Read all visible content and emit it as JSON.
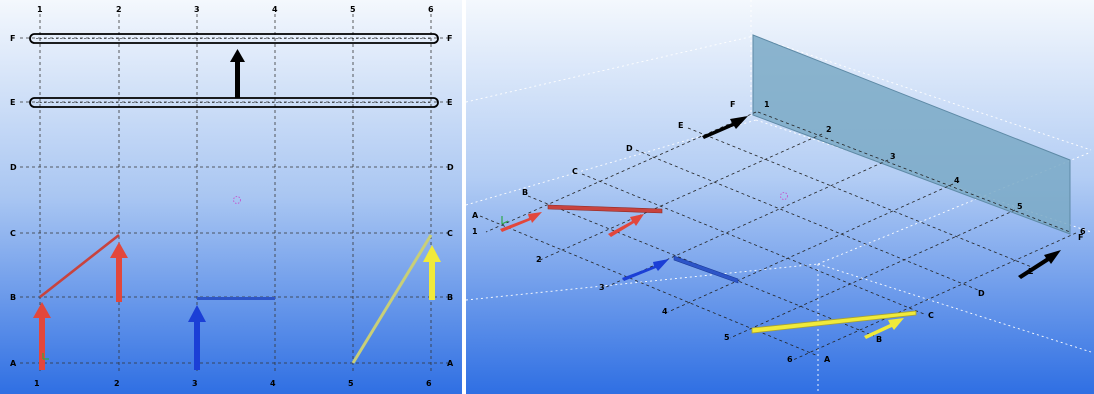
{
  "left_view": {
    "columns": [
      "1",
      "2",
      "3",
      "4",
      "5",
      "6"
    ],
    "rows": [
      "A",
      "B",
      "C",
      "D",
      "E",
      "F"
    ]
  },
  "right_view": {
    "numbers": [
      "1",
      "2",
      "3",
      "4",
      "5",
      "6"
    ],
    "letters": [
      "F",
      "E",
      "D",
      "C",
      "B",
      "A"
    ]
  },
  "colors": {
    "bg_top": "#f4f8fd",
    "bg_bottom": "#2f6fe3",
    "red": "#e2473c",
    "blue": "#1b3fd6",
    "yellow": "#f0ea3a",
    "black": "#000000",
    "wall": "#7aa9c6"
  }
}
